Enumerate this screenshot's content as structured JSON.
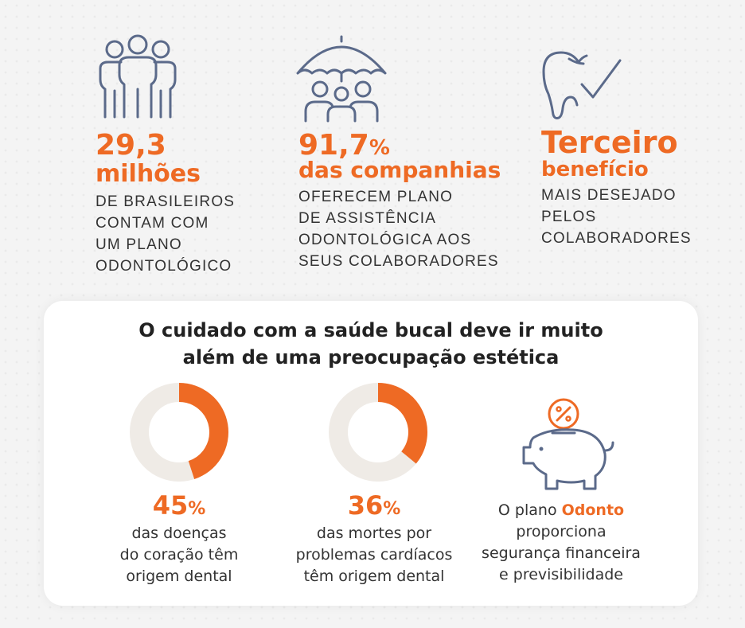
{
  "stats": [
    {
      "value_line1": "29,3",
      "value_line2": "milhões",
      "description": [
        "DE BRASILEIROS",
        "CONTAM COM",
        "UM PLANO",
        "ODONTOLÓGICO"
      ],
      "icon": "people-group-icon"
    },
    {
      "value_line1": "91,7",
      "value_symbol": "%",
      "value_line2": "das companhias",
      "description": [
        "OFERECEM PLANO",
        "DE ASSISTÊNCIA",
        "ODONTOLÓGICA AOS",
        "SEUS COLABORADORES"
      ],
      "icon": "umbrella-family-icon"
    },
    {
      "value_line1": "Terceiro",
      "value_line2": "benefício",
      "description": [
        "MAIS DESEJADO",
        "PELOS",
        "COLABORADORES"
      ],
      "icon": "tooth-check-icon"
    }
  ],
  "card": {
    "title_line1": "O cuidado com a saúde bucal deve ir muito",
    "title_line2": "além de uma preocupação estética",
    "items": [
      {
        "value": "45",
        "symbol": "%",
        "percent": 45,
        "text": [
          "das doenças",
          "do coração têm",
          "origem dental"
        ]
      },
      {
        "value": "36",
        "symbol": "%",
        "percent": 36,
        "text": [
          "das mortes por",
          "problemas cardíacos",
          "têm origem dental"
        ]
      },
      {
        "text_prefix": "O plano ",
        "text_highlight": "Odonto",
        "text": [
          "proporciona",
          "segurança financeira",
          "e previsibilidade"
        ],
        "icon": "piggy-bank-icon"
      }
    ]
  },
  "colors": {
    "accent": "#ee6a24",
    "track": "#efebe6",
    "icon_stroke": "#5b6a8a"
  }
}
